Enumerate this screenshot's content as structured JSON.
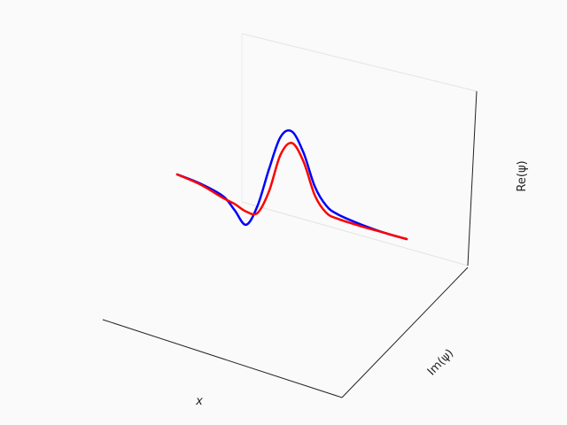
{
  "chart_data": {
    "type": "line",
    "projection": "3d",
    "xlabel": "x",
    "ylabel": "Im(ψ)",
    "zlabel": "Re(ψ)",
    "grid": false,
    "legend": "none",
    "x_range": [
      -1,
      1
    ],
    "series": [
      {
        "color": "#0000ff",
        "x": [
          -1.0,
          -0.8,
          -0.6,
          -0.5,
          -0.4,
          -0.3,
          -0.2,
          -0.1,
          0.0,
          0.1,
          0.2,
          0.3,
          0.4,
          0.6,
          0.8,
          1.0
        ],
        "z": [
          0.0,
          -0.03,
          -0.1,
          -0.22,
          -0.35,
          -0.1,
          0.35,
          0.75,
          0.85,
          0.65,
          0.3,
          0.12,
          0.06,
          0.02,
          0.0,
          0.0
        ]
      },
      {
        "color": "#ff0000",
        "x": [
          -1.0,
          -0.8,
          -0.6,
          -0.5,
          -0.4,
          -0.3,
          -0.2,
          -0.1,
          0.0,
          0.1,
          0.2,
          0.3,
          0.4,
          0.6,
          0.8,
          1.0
        ],
        "z": [
          0.0,
          -0.04,
          -0.12,
          -0.15,
          -0.2,
          -0.18,
          0.1,
          0.55,
          0.72,
          0.55,
          0.2,
          0.04,
          0.01,
          0.0,
          0.0,
          0.0
        ]
      }
    ]
  }
}
